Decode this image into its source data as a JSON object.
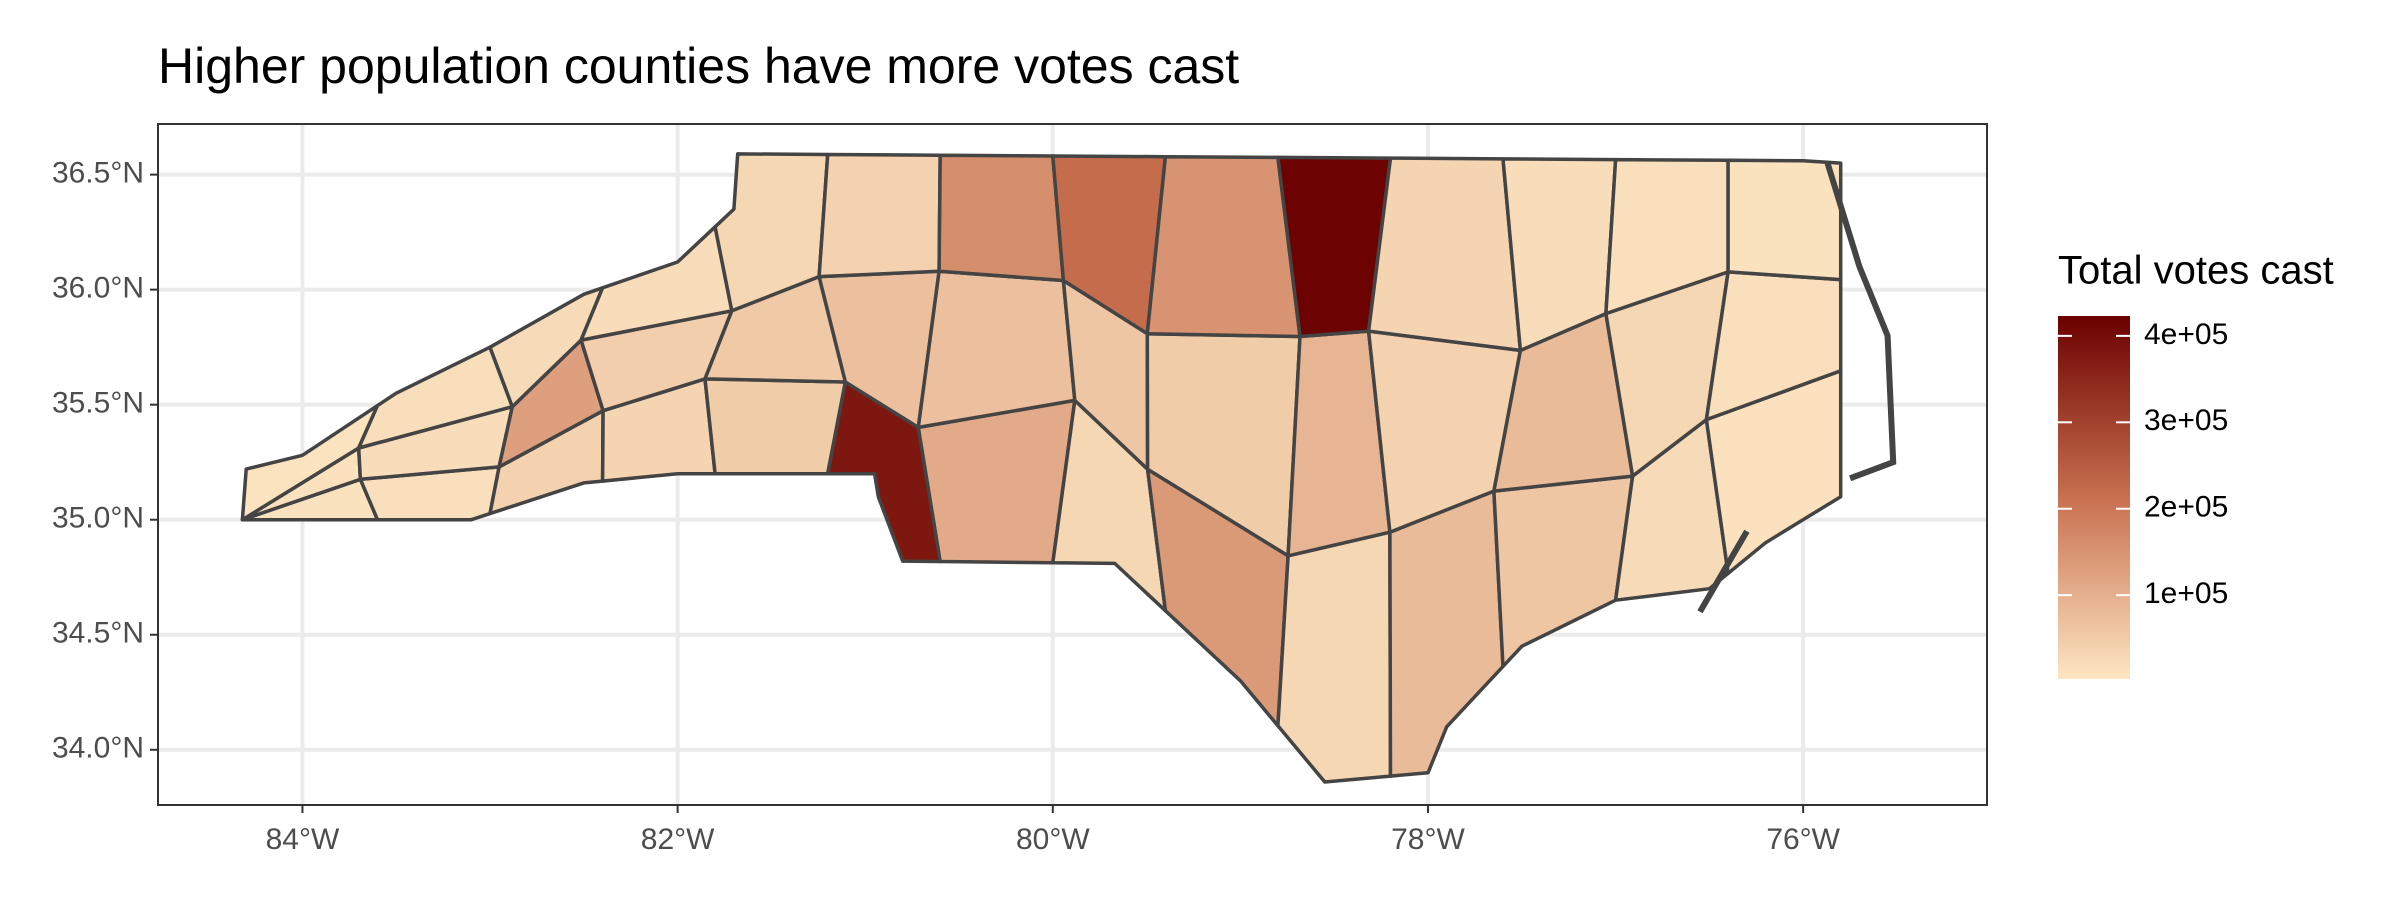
{
  "chart_data": {
    "type": "choropleth",
    "title": "Higher population counties have more votes cast",
    "legend_title": "Total votes cast",
    "values": [
      10000,
      12000,
      8000,
      15000,
      20000,
      18000,
      40000,
      130000,
      25000,
      35000,
      45000,
      20000,
      50000,
      55000,
      30000,
      380000,
      70000,
      40000,
      110000,
      70000,
      160000,
      30000,
      60000,
      220000,
      140000,
      50000,
      150000,
      30000,
      90000,
      420000,
      80000,
      40000,
      35000,
      60000,
      80000,
      20000,
      25000,
      30000,
      15000,
      12000,
      15000,
      10000
    ],
    "colorscale": [
      "#fde6c3",
      "#c8704f",
      "#6b0000"
    ],
    "clim": [
      3000,
      423000
    ],
    "cticks": [
      {
        "value": 100000,
        "label": "1e+05"
      },
      {
        "value": 200000,
        "label": "2e+05"
      },
      {
        "value": 300000,
        "label": "3e+05"
      },
      {
        "value": 400000,
        "label": "4e+05"
      }
    ],
    "xlim": [
      -84.77,
      -75.02
    ],
    "ylim": [
      33.76,
      36.72
    ],
    "xticks": [
      {
        "value": -84,
        "label": "84°W"
      },
      {
        "value": -82,
        "label": "82°W"
      },
      {
        "value": -80,
        "label": "80°W"
      },
      {
        "value": -78,
        "label": "78°W"
      },
      {
        "value": -76,
        "label": "76°W"
      }
    ],
    "yticks": [
      {
        "value": 34.0,
        "label": "34.0°N"
      },
      {
        "value": 34.5,
        "label": "34.5°N"
      },
      {
        "value": 35.0,
        "label": "35.0°N"
      },
      {
        "value": 35.5,
        "label": "35.5°N"
      },
      {
        "value": 36.0,
        "label": "36.0°N"
      },
      {
        "value": 36.5,
        "label": "36.5°N"
      }
    ],
    "grid": true
  }
}
